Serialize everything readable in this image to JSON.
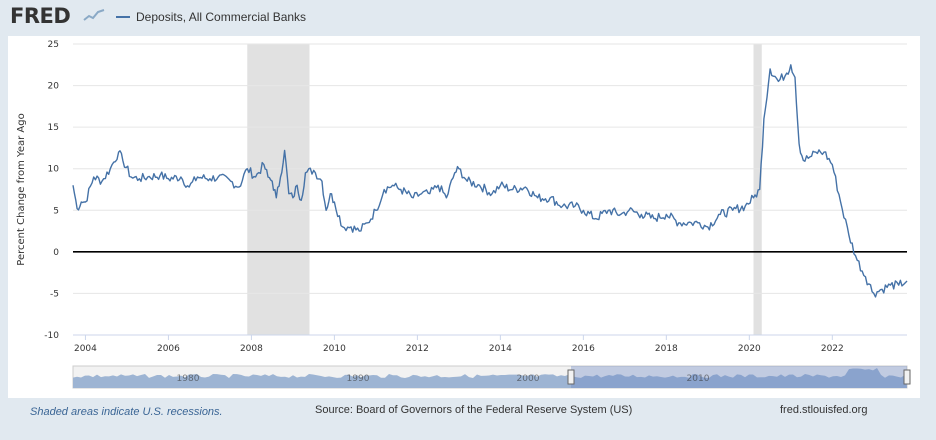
{
  "header": {
    "logo_text": "FRED",
    "series_legend": "Deposits, All Commercial Banks"
  },
  "colors": {
    "line": "#4572a7",
    "recession": "#e1e1e1",
    "zero_line": "#000000",
    "background": "#e1e9f0"
  },
  "footer": {
    "recession_note": "Shaded areas indicate U.S. recessions.",
    "source": "Source: Board of Governors of the Federal Reserve System (US)",
    "site": "fred.stlouisfed.org"
  },
  "navigator": {
    "year_labels": [
      "1980",
      "1990",
      "2000",
      "2010"
    ]
  },
  "chart_data": {
    "type": "line",
    "title": "Deposits, All Commercial Banks",
    "ylabel": "Percent Change from Year Ago",
    "xlabel": "",
    "xlim": [
      2003.7,
      2023.8
    ],
    "ylim": [
      -10,
      25
    ],
    "yticks": [
      -10,
      -5,
      0,
      5,
      10,
      15,
      20,
      25
    ],
    "xticks": [
      2004,
      2006,
      2008,
      2010,
      2012,
      2014,
      2016,
      2018,
      2020,
      2022
    ],
    "recessions": [
      [
        2007.9,
        2009.4
      ],
      [
        2020.1,
        2020.3
      ]
    ],
    "series": [
      {
        "name": "Deposits, All Commercial Banks",
        "x": [
          2003.7,
          2003.8,
          2003.9,
          2004.0,
          2004.2,
          2004.4,
          2004.6,
          2004.8,
          2004.9,
          2005.1,
          2005.3,
          2005.5,
          2005.8,
          2006.0,
          2006.3,
          2006.5,
          2006.7,
          2007.0,
          2007.2,
          2007.5,
          2007.7,
          2007.9,
          2008.1,
          2008.3,
          2008.4,
          2008.5,
          2008.6,
          2008.7,
          2008.8,
          2008.9,
          2009.0,
          2009.1,
          2009.2,
          2009.3,
          2009.5,
          2009.7,
          2009.8,
          2009.9,
          2010.0,
          2010.2,
          2010.4,
          2010.6,
          2010.8,
          2011.0,
          2011.2,
          2011.4,
          2011.6,
          2011.9,
          2012.1,
          2012.3,
          2012.5,
          2012.7,
          2012.9,
          2013.0,
          2013.2,
          2013.5,
          2013.8,
          2014.0,
          2014.3,
          2014.6,
          2014.9,
          2015.2,
          2015.5,
          2015.8,
          2016.0,
          2016.3,
          2016.6,
          2016.9,
          2017.1,
          2017.4,
          2017.7,
          2018.0,
          2018.3,
          2018.6,
          2018.8,
          2019.0,
          2019.3,
          2019.6,
          2019.9,
          2020.1,
          2020.25,
          2020.35,
          2020.5,
          2020.7,
          2020.9,
          2021.0,
          2021.1,
          2021.2,
          2021.3,
          2021.5,
          2021.6,
          2021.8,
          2022.0,
          2022.2,
          2022.4,
          2022.6,
          2022.8,
          2023.0,
          2023.2,
          2023.4,
          2023.6,
          2023.8
        ],
        "values": [
          8.0,
          5.2,
          6.0,
          6.0,
          9.0,
          8.5,
          10.0,
          12.0,
          11.0,
          9.0,
          8.8,
          9.0,
          9.2,
          8.8,
          9.0,
          7.8,
          9.0,
          8.8,
          9.0,
          8.5,
          7.8,
          10.0,
          9.0,
          10.5,
          9.0,
          8.5,
          6.5,
          9.0,
          12.2,
          7.0,
          6.5,
          8.0,
          6.2,
          9.5,
          9.8,
          8.5,
          5.0,
          7.0,
          6.0,
          3.0,
          3.0,
          2.5,
          3.5,
          5.0,
          7.5,
          8.0,
          7.5,
          6.5,
          7.0,
          7.0,
          8.0,
          6.5,
          9.5,
          10.0,
          8.5,
          8.0,
          7.0,
          8.0,
          7.5,
          7.8,
          6.5,
          6.5,
          5.5,
          5.5,
          5.0,
          4.0,
          5.0,
          4.5,
          5.0,
          4.5,
          4.0,
          4.5,
          3.5,
          3.5,
          3.5,
          3.0,
          4.5,
          5.0,
          5.5,
          6.5,
          7.5,
          16.0,
          22.0,
          20.5,
          21.5,
          22.5,
          21.0,
          13.0,
          11.0,
          11.5,
          12.0,
          12.0,
          10.5,
          6.0,
          2.0,
          -1.0,
          -3.0,
          -5.0,
          -4.5,
          -4.0,
          -4.0,
          -3.5
        ]
      }
    ]
  }
}
